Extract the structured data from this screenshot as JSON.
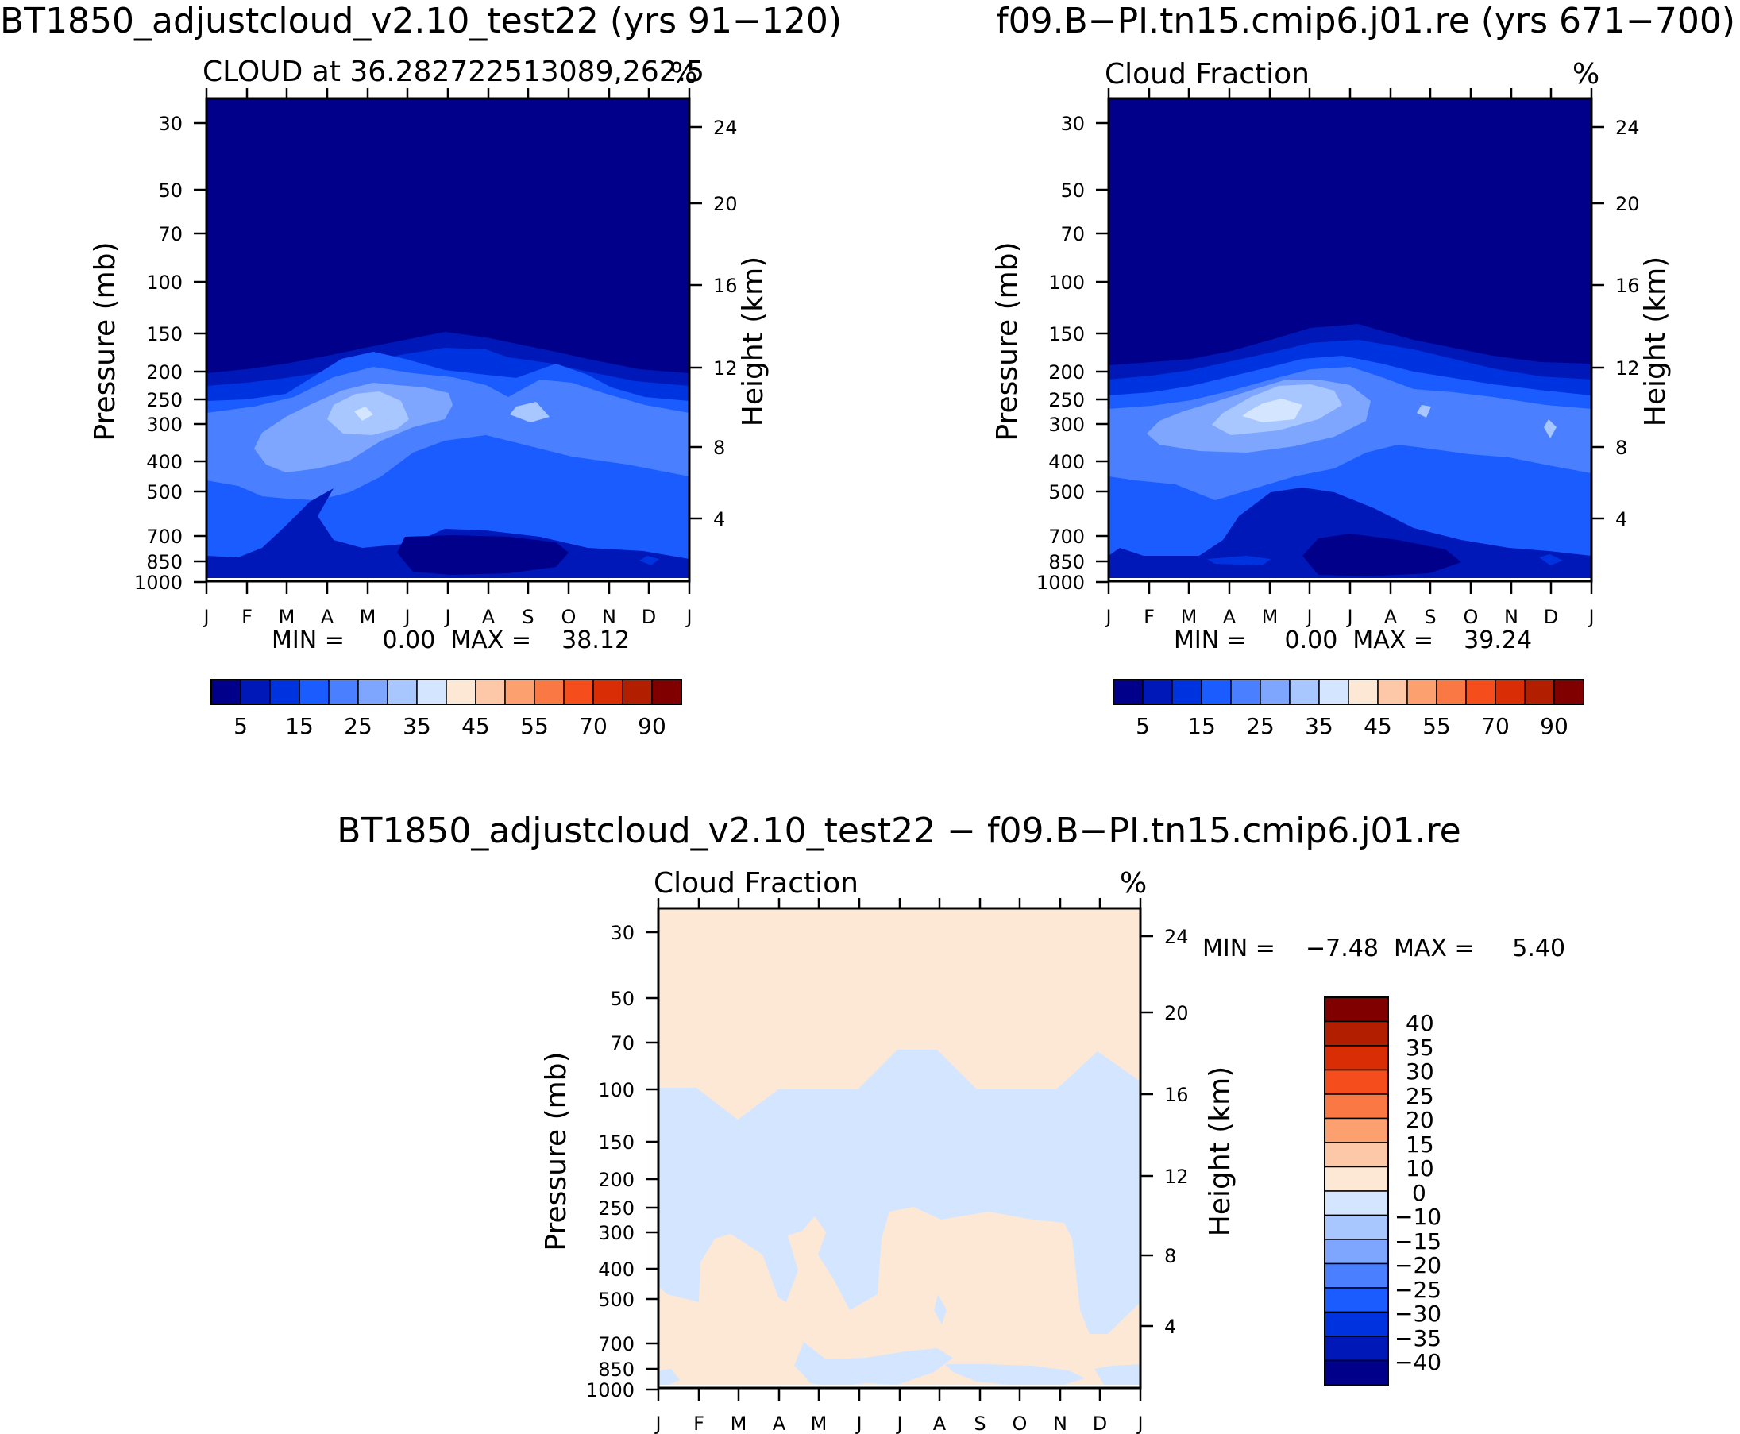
{
  "pressure_ticks": [
    "30",
    "50",
    "70",
    "100",
    "150",
    "200",
    "250",
    "300",
    "400",
    "500",
    "700",
    "850",
    "1000"
  ],
  "height_ticks": [
    "24",
    "20",
    "16",
    "12",
    "8",
    "4"
  ],
  "month_ticks": [
    "J",
    "F",
    "M",
    "A",
    "M",
    "J",
    "J",
    "A",
    "S",
    "O",
    "N",
    "D",
    "J"
  ],
  "panels": [
    {
      "title": "BT1850_adjustcloud_v2.10_test22 (yrs 91−120)",
      "subtitle_left": "CLOUD at 36.282722513089,262.5",
      "subtitle_right": "%",
      "ylabel_left": "Pressure (mb)",
      "ylabel_right": "Height (km)",
      "stats": "MIN =     0.00  MAX =    38.12"
    },
    {
      "title": "f09.B−PI.tn15.cmip6.j01.re (yrs 671−700)",
      "subtitle_left": "Cloud Fraction",
      "subtitle_right": "%",
      "ylabel_left": "Pressure (mb)",
      "ylabel_right": "Height (km)",
      "stats": "MIN =     0.00  MAX =    39.24"
    },
    {
      "title": "BT1850_adjustcloud_v2.10_test22 − f09.B−PI.tn15.cmip6.j01.re",
      "subtitle_left": "Cloud Fraction",
      "subtitle_right": "%",
      "ylabel_left": "Pressure (mb)",
      "ylabel_right": "Height (km)",
      "stats": "MIN =    −7.48  MAX =     5.40"
    }
  ],
  "colorbar_top": {
    "colors": [
      "#00008b",
      "#0018b8",
      "#0033e0",
      "#1a5cff",
      "#4a80ff",
      "#7ea6ff",
      "#a8c6ff",
      "#d4e6ff",
      "#fde8d6",
      "#fcc8a8",
      "#fca070",
      "#fa7843",
      "#f54d1c",
      "#d92e05",
      "#b21e00",
      "#800000"
    ],
    "labels": [
      "5",
      "15",
      "25",
      "35",
      "45",
      "55",
      "70",
      "90"
    ]
  },
  "colorbar_diff": {
    "colors": [
      "#800000",
      "#b21e00",
      "#d92e05",
      "#f54d1c",
      "#fa7843",
      "#fca070",
      "#fcc8a8",
      "#fde8d6",
      "#d4e6ff",
      "#a8c6ff",
      "#7ea6ff",
      "#4a80ff",
      "#1a5cff",
      "#0033e0",
      "#0018b8",
      "#00008b"
    ],
    "labels": [
      "40",
      "35",
      "30",
      "25",
      "20",
      "15",
      "10",
      "0",
      "−10",
      "−15",
      "−20",
      "−25",
      "−30",
      "−35",
      "−40"
    ]
  },
  "chart_data": [
    {
      "type": "contour",
      "title": "BT1850_adjustcloud_v2.10_test22 (yrs 91−120)",
      "variable": "CLOUD at 36.282722513089,262.5",
      "units": "%",
      "x": [
        "J",
        "F",
        "M",
        "A",
        "M",
        "J",
        "J",
        "A",
        "S",
        "O",
        "N",
        "D",
        "J"
      ],
      "y_pressure_mb": [
        30,
        50,
        70,
        100,
        150,
        200,
        250,
        300,
        400,
        500,
        700,
        850,
        1000
      ],
      "xlabel": "",
      "ylabel": "Pressure (mb)",
      "ylabel_right": "Height (km)",
      "y_right_ticks_km": [
        4,
        8,
        12,
        16,
        20,
        24
      ],
      "levels": [
        5,
        10,
        15,
        20,
        25,
        30,
        35,
        40,
        45,
        50,
        55,
        60,
        70,
        80,
        90
      ],
      "min": 0.0,
      "max": 38.12,
      "approx_cloud_fraction_at_levels": [
        {
          "p": 30,
          "values": [
            0,
            0,
            0,
            0,
            0,
            0,
            0,
            0,
            0,
            0,
            0,
            0,
            0
          ]
        },
        {
          "p": 150,
          "values": [
            0,
            0,
            0,
            1,
            4,
            6,
            7,
            5,
            5,
            2,
            0,
            0,
            0
          ]
        },
        {
          "p": 200,
          "values": [
            6,
            8,
            10,
            13,
            16,
            15,
            13,
            11,
            12,
            10,
            9,
            8,
            6
          ]
        },
        {
          "p": 250,
          "values": [
            12,
            15,
            18,
            24,
            30,
            25,
            18,
            22,
            26,
            17,
            15,
            14,
            12
          ]
        },
        {
          "p": 300,
          "values": [
            16,
            20,
            26,
            30,
            38,
            28,
            20,
            20,
            24,
            18,
            17,
            17,
            16
          ]
        },
        {
          "p": 400,
          "values": [
            16,
            20,
            25,
            22,
            20,
            15,
            12,
            11,
            13,
            15,
            16,
            17,
            16
          ]
        },
        {
          "p": 500,
          "values": [
            14,
            15,
            15,
            12,
            10,
            8,
            7,
            7,
            8,
            11,
            13,
            14,
            14
          ]
        },
        {
          "p": 700,
          "values": [
            12,
            13,
            14,
            10,
            7,
            6,
            6,
            5,
            6,
            8,
            10,
            11,
            12
          ]
        },
        {
          "p": 850,
          "values": [
            6,
            6,
            7,
            6,
            5,
            4,
            3,
            3,
            4,
            5,
            6,
            8,
            6
          ]
        }
      ]
    },
    {
      "type": "contour",
      "title": "f09.B−PI.tn15.cmip6.j01.re (yrs 671−700)",
      "variable": "Cloud Fraction",
      "units": "%",
      "x": [
        "J",
        "F",
        "M",
        "A",
        "M",
        "J",
        "J",
        "A",
        "S",
        "O",
        "N",
        "D",
        "J"
      ],
      "y_pressure_mb": [
        30,
        50,
        70,
        100,
        150,
        200,
        250,
        300,
        400,
        500,
        700,
        850,
        1000
      ],
      "xlabel": "",
      "ylabel": "Pressure (mb)",
      "ylabel_right": "Height (km)",
      "y_right_ticks_km": [
        4,
        8,
        12,
        16,
        20,
        24
      ],
      "levels": [
        5,
        10,
        15,
        20,
        25,
        30,
        35,
        40,
        45,
        50,
        55,
        60,
        70,
        80,
        90
      ],
      "min": 0.0,
      "max": 39.24,
      "approx_cloud_fraction_at_levels": [
        {
          "p": 30,
          "values": [
            0,
            0,
            0,
            0,
            0,
            0,
            0,
            0,
            0,
            0,
            0,
            0,
            0
          ]
        },
        {
          "p": 150,
          "values": [
            0,
            0,
            0,
            1,
            5,
            7,
            7,
            6,
            4,
            2,
            0,
            0,
            0
          ]
        },
        {
          "p": 200,
          "values": [
            6,
            8,
            11,
            14,
            17,
            17,
            14,
            12,
            12,
            10,
            9,
            8,
            6
          ]
        },
        {
          "p": 250,
          "values": [
            13,
            16,
            20,
            26,
            32,
            28,
            20,
            20,
            24,
            17,
            15,
            15,
            13
          ]
        },
        {
          "p": 300,
          "values": [
            17,
            21,
            28,
            34,
            39,
            30,
            22,
            20,
            22,
            19,
            18,
            22,
            17
          ]
        },
        {
          "p": 400,
          "values": [
            17,
            20,
            24,
            22,
            20,
            16,
            12,
            11,
            13,
            15,
            16,
            18,
            17
          ]
        },
        {
          "p": 500,
          "values": [
            14,
            15,
            14,
            12,
            10,
            8,
            7,
            7,
            8,
            10,
            12,
            14,
            14
          ]
        },
        {
          "p": 700,
          "values": [
            12,
            12,
            13,
            10,
            8,
            6,
            5,
            5,
            6,
            8,
            10,
            11,
            12
          ]
        },
        {
          "p": 850,
          "values": [
            6,
            7,
            7,
            6,
            5,
            4,
            3,
            3,
            4,
            5,
            6,
            8,
            6
          ]
        }
      ]
    },
    {
      "type": "contour",
      "title": "BT1850_adjustcloud_v2.10_test22 − f09.B−PI.tn15.cmip6.j01.re",
      "variable": "Cloud Fraction",
      "units": "%",
      "x": [
        "J",
        "F",
        "M",
        "A",
        "M",
        "J",
        "J",
        "A",
        "S",
        "O",
        "N",
        "D",
        "J"
      ],
      "y_pressure_mb": [
        30,
        50,
        70,
        100,
        150,
        200,
        250,
        300,
        400,
        500,
        700,
        850,
        1000
      ],
      "xlabel": "",
      "ylabel": "Pressure (mb)",
      "ylabel_right": "Height (km)",
      "y_right_ticks_km": [
        4,
        8,
        12,
        16,
        20,
        24
      ],
      "levels": [
        -40,
        -35,
        -30,
        -25,
        -20,
        -15,
        -10,
        0,
        10,
        15,
        20,
        25,
        30,
        35,
        40
      ],
      "min": -7.48,
      "max": 5.4,
      "regions": [
        {
          "sign": "positive (0 to 10)",
          "location": "stratosphere above ~100 mb, all months"
        },
        {
          "sign": "negative (-10 to 0)",
          "location": "~100–300 mb band, all months; lower troposphere Jan and Nov–Dec"
        },
        {
          "sign": "positive (0 to 10)",
          "location": "~300–850 mb, Feb–May and Jul–Oct"
        }
      ]
    }
  ]
}
